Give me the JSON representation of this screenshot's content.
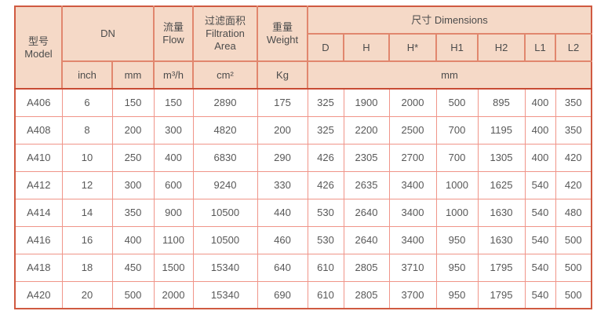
{
  "colors": {
    "header_bg": "#f5d9c7",
    "header_border": "#e1876e",
    "outer_border": "#d05a41",
    "separator": "#c84b34",
    "data_border": "#f09589",
    "header_text": "#4c4c4c",
    "data_text": "#585858"
  },
  "table": {
    "header": {
      "model_zh": "型号",
      "model_en": "Model",
      "dn": "DN",
      "flow_zh": "流量",
      "flow_en": "Flow",
      "filtration_zh": "过滤面积",
      "filtration_en1": "Filtration",
      "filtration_en2": "Area",
      "weight_zh": "重量",
      "weight_en": "Weight",
      "dimensions": "尺寸 Dimensions",
      "dim_cols": [
        "D",
        "H",
        "H*",
        "H1",
        "H2",
        "L1",
        "L2"
      ],
      "units": {
        "inch": "inch",
        "mm": "mm",
        "flow": "m³/h",
        "area": "cm²",
        "weight": "Kg",
        "dims": "mm"
      }
    },
    "rows": [
      {
        "cells": [
          "A406",
          "6",
          "150",
          "150",
          "2890",
          "175",
          "325",
          "1900",
          "2000",
          "500",
          "895",
          "400",
          "350"
        ]
      },
      {
        "cells": [
          "A408",
          "8",
          "200",
          "300",
          "4820",
          "200",
          "325",
          "2200",
          "2500",
          "700",
          "1195",
          "400",
          "350"
        ]
      },
      {
        "cells": [
          "A410",
          "10",
          "250",
          "400",
          "6830",
          "290",
          "426",
          "2305",
          "2700",
          "700",
          "1305",
          "400",
          "420"
        ]
      },
      {
        "cells": [
          "A412",
          "12",
          "300",
          "600",
          "9240",
          "330",
          "426",
          "2635",
          "3400",
          "1000",
          "1625",
          "540",
          "420"
        ]
      },
      {
        "cells": [
          "A414",
          "14",
          "350",
          "900",
          "10500",
          "440",
          "530",
          "2640",
          "3400",
          "1000",
          "1630",
          "540",
          "480"
        ]
      },
      {
        "cells": [
          "A416",
          "16",
          "400",
          "1100",
          "10500",
          "460",
          "530",
          "2640",
          "3400",
          "950",
          "1630",
          "540",
          "500"
        ]
      },
      {
        "cells": [
          "A418",
          "18",
          "450",
          "1500",
          "15340",
          "640",
          "610",
          "2805",
          "3710",
          "950",
          "1795",
          "540",
          "500"
        ]
      },
      {
        "cells": [
          "A420",
          "20",
          "500",
          "2000",
          "15340",
          "690",
          "610",
          "2805",
          "3700",
          "950",
          "1795",
          "540",
          "500"
        ]
      }
    ]
  }
}
